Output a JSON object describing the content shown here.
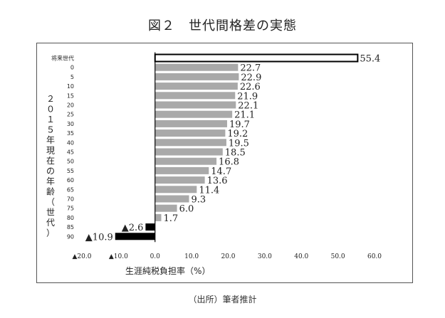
{
  "title": "図２　世代間格差の実態",
  "source": "（出所）筆者推計",
  "chart_data": {
    "type": "bar",
    "orientation": "horizontal",
    "ylabel_chars": [
      "２",
      "０",
      "１",
      "５",
      "年",
      "現",
      "在",
      "の",
      "年",
      "齢",
      "（",
      "世",
      "代",
      "）"
    ],
    "xlabel": "生涯純税負担率（%）",
    "xlim": [
      -20,
      60
    ],
    "xticks": [
      -20,
      -10,
      0,
      10,
      20,
      30,
      40,
      50,
      60
    ],
    "xtick_labels": [
      "▲20.0",
      "▲10.0",
      "0.0",
      "10.0",
      "20.0",
      "30.0",
      "40.0",
      "50.0",
      "60.0"
    ],
    "categories": [
      "将来世代",
      "0",
      "5",
      "10",
      "15",
      "20",
      "25",
      "30",
      "35",
      "40",
      "45",
      "50",
      "55",
      "60",
      "65",
      "70",
      "75",
      "80",
      "85",
      "90"
    ],
    "values": [
      55.4,
      22.7,
      22.9,
      22.6,
      21.9,
      22.1,
      21.1,
      19.7,
      19.2,
      19.5,
      18.5,
      16.8,
      14.7,
      13.6,
      11.4,
      9.3,
      6.0,
      1.7,
      -2.6,
      -10.9
    ],
    "value_labels": [
      "55.4",
      "22.7",
      "22.9",
      "22.6",
      "21.9",
      "22.1",
      "21.1",
      "19.7",
      "19.2",
      "19.5",
      "18.5",
      "16.8",
      "14.7",
      "13.6",
      "11.4",
      "9.3",
      "6.0",
      "1.7",
      "▲2.6",
      "▲10.9"
    ],
    "colors": {
      "future": "#ffffff",
      "positive": "#a9a9a9",
      "negative": "#000000",
      "axis": "#000000"
    },
    "grid": false,
    "legend": "none"
  }
}
